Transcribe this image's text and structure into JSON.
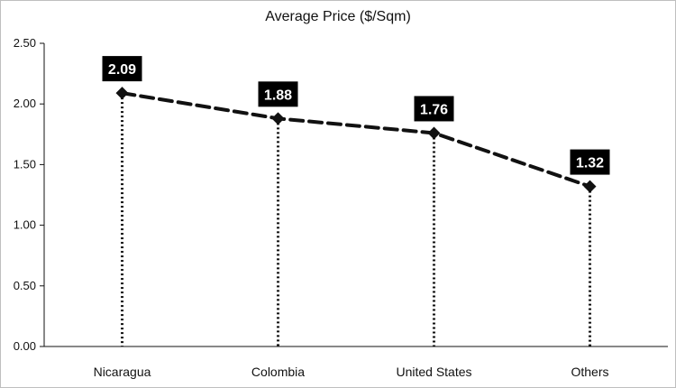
{
  "chart_data": {
    "type": "line",
    "title": "Average Price ($/Sqm)",
    "categories": [
      "Nicaragua",
      "Colombia",
      "United States",
      "Others"
    ],
    "values": [
      2.09,
      1.88,
      1.76,
      1.32
    ],
    "data_labels": [
      "2.09",
      "1.88",
      "1.76",
      "1.32"
    ],
    "y_ticks": [
      "0.00",
      "0.50",
      "1.00",
      "1.50",
      "2.00",
      "2.50"
    ],
    "y_tick_values": [
      0,
      0.5,
      1.0,
      1.5,
      2.0,
      2.5
    ],
    "ylim": [
      0,
      2.5
    ],
    "xlabel": "",
    "ylabel": "",
    "grid": false,
    "legend": "none",
    "line_style": "dashed",
    "drop_lines": "dotted",
    "colors": {
      "line": "#111111",
      "marker": "#111111",
      "label_box": "#000000",
      "label_text": "#ffffff",
      "axis": "#111111"
    }
  }
}
